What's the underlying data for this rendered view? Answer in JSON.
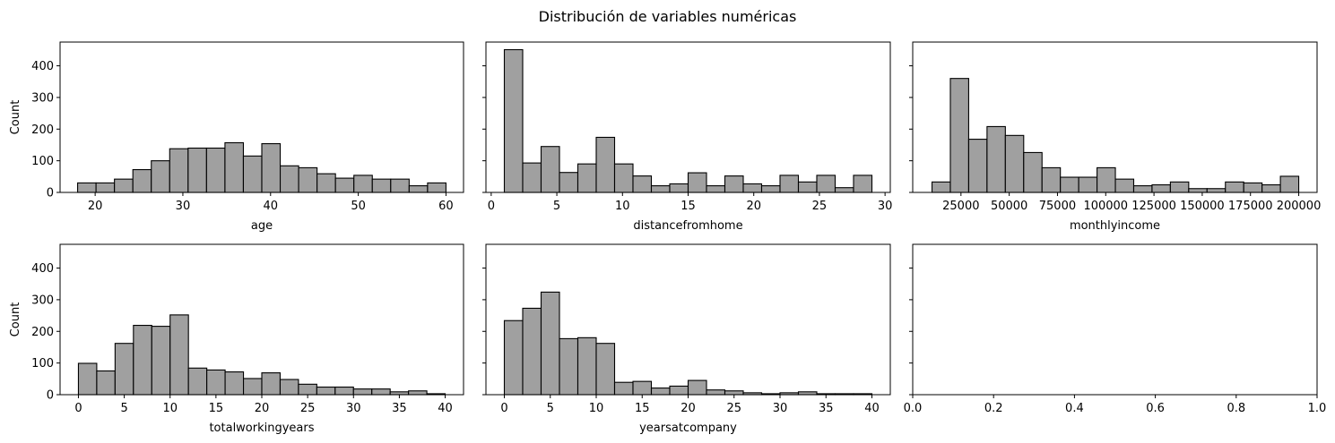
{
  "figure": {
    "title": "Distribución de variables numéricas",
    "y_label": "Count"
  },
  "chart_data": [
    {
      "type": "bar",
      "xlabel": "age",
      "ylabel": "Count",
      "xlim": [
        16,
        62
      ],
      "ylim": [
        0,
        475
      ],
      "xticks": [
        20,
        30,
        40,
        50,
        60
      ],
      "yticks": [
        0,
        100,
        200,
        300,
        400
      ],
      "bin_start": 18,
      "bin_width": 2.1,
      "values": [
        30,
        30,
        42,
        72,
        100,
        138,
        140,
        140,
        157,
        115,
        154,
        84,
        78,
        59,
        45,
        54,
        42,
        42,
        21,
        30
      ],
      "bar_color": "#a0a0a0"
    },
    {
      "type": "bar",
      "xlabel": "distancefromhome",
      "ylabel": "",
      "xlim": [
        -0.4,
        30.4
      ],
      "ylim": [
        0,
        475
      ],
      "xticks": [
        0,
        5,
        10,
        15,
        20,
        25,
        30
      ],
      "yticks": [
        0,
        100,
        200,
        300,
        400
      ],
      "bin_start": 1,
      "bin_width": 1.4,
      "values": [
        451,
        93,
        145,
        63,
        90,
        174,
        90,
        52,
        21,
        27,
        62,
        21,
        52,
        27,
        21,
        54,
        33,
        54,
        15,
        54
      ],
      "bar_color": "#a0a0a0"
    },
    {
      "type": "bar",
      "xlabel": "monthlyincome",
      "ylabel": "",
      "xlim": [
        0,
        209500
      ],
      "ylim": [
        0,
        475
      ],
      "xticks": [
        25000,
        50000,
        75000,
        100000,
        125000,
        150000,
        175000,
        200000
      ],
      "yticks": [
        0,
        100,
        200,
        300,
        400
      ],
      "bin_start": 10000,
      "bin_width": 9500,
      "values": [
        33,
        360,
        168,
        208,
        180,
        126,
        78,
        48,
        48,
        78,
        42,
        21,
        24,
        33,
        12,
        12,
        33,
        30,
        24,
        51
      ],
      "bar_color": "#a0a0a0"
    },
    {
      "type": "bar",
      "xlabel": "totalworkingyears",
      "ylabel": "Count",
      "xlim": [
        -2,
        42
      ],
      "ylim": [
        0,
        475
      ],
      "xticks": [
        0,
        5,
        10,
        15,
        20,
        25,
        30,
        35,
        40
      ],
      "yticks": [
        0,
        100,
        200,
        300,
        400
      ],
      "bin_start": 0,
      "bin_width": 2,
      "values": [
        99,
        75,
        162,
        219,
        216,
        252,
        84,
        78,
        72,
        51,
        69,
        48,
        33,
        24,
        24,
        18,
        18,
        9,
        12,
        3
      ],
      "bar_color": "#a0a0a0"
    },
    {
      "type": "bar",
      "xlabel": "yearsatcompany",
      "ylabel": "",
      "xlim": [
        -2,
        42
      ],
      "ylim": [
        0,
        475
      ],
      "xticks": [
        0,
        5,
        10,
        15,
        20,
        25,
        30,
        35,
        40
      ],
      "yticks": [
        0,
        100,
        200,
        300,
        400
      ],
      "bin_start": 0,
      "bin_width": 2,
      "values": [
        234,
        273,
        324,
        177,
        180,
        162,
        39,
        42,
        21,
        27,
        45,
        15,
        12,
        6,
        3,
        6,
        9,
        3,
        3,
        3
      ],
      "bar_color": "#a0a0a0"
    },
    {
      "type": "scatter",
      "xlabel": "",
      "ylabel": "",
      "xlim": [
        0,
        1
      ],
      "ylim": [
        0,
        475
      ],
      "xticks": [
        0.0,
        0.2,
        0.4,
        0.6,
        0.8,
        1.0
      ],
      "xtick_labels": [
        "0.0",
        "0.2",
        "0.4",
        "0.6",
        "0.8",
        "1.0"
      ],
      "yticks": [
        0,
        100,
        200,
        300,
        400
      ],
      "values": []
    }
  ]
}
